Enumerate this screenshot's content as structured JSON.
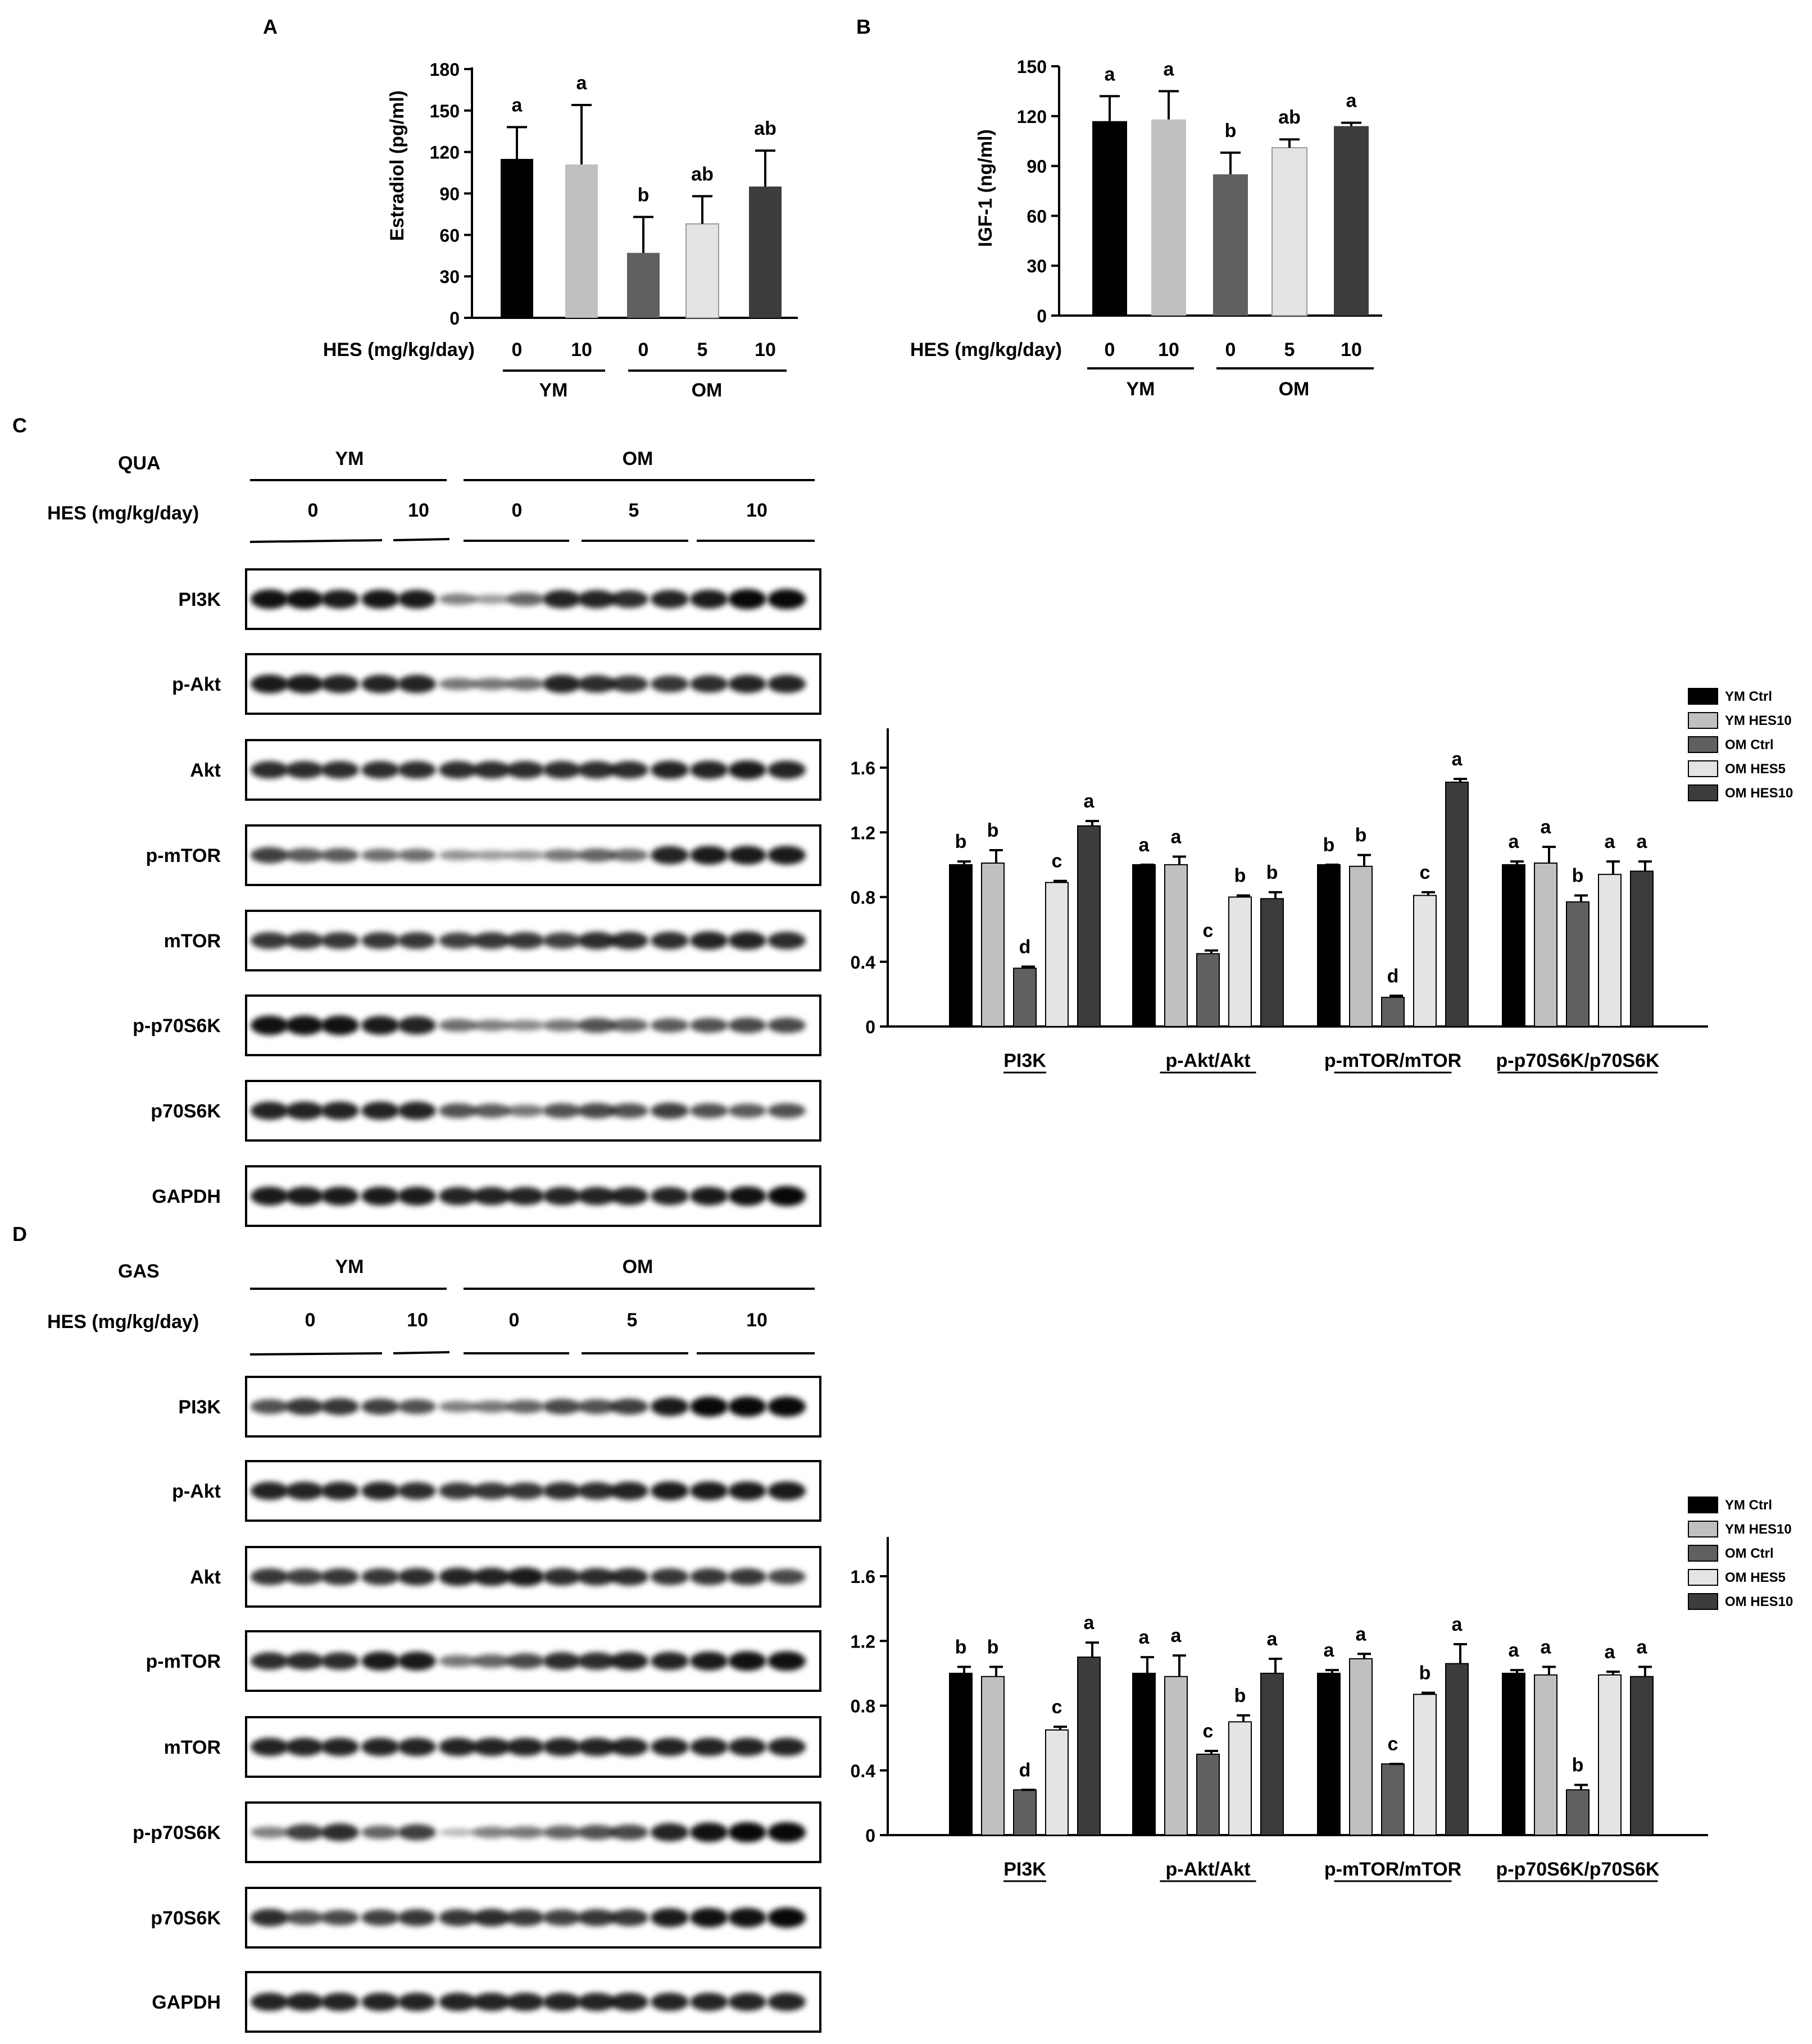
{
  "colors": {
    "ym_ctrl": "#000000",
    "ym_hes10": "#c0c0c0",
    "om_ctrl": "#606060",
    "om_hes5": "#e4e4e4",
    "om_hes10": "#3c3c3c"
  },
  "panelA": {
    "label": "A",
    "xaxis_label": "HES (mg/kg/day)",
    "doses": [
      "0",
      "10",
      "0",
      "5",
      "10"
    ],
    "groups": [
      "YM",
      "OM"
    ],
    "chart_data": {
      "type": "bar",
      "ylabel": "Estradiol (pg/ml)",
      "ylim": [
        0,
        180
      ],
      "yticks": [
        "0",
        "30",
        "60",
        "90",
        "120",
        "150",
        "180"
      ],
      "categories": [
        "YM 0",
        "YM 10",
        "OM 0",
        "OM 5",
        "OM 10"
      ],
      "values": [
        115,
        111,
        47,
        68,
        95
      ],
      "errors": [
        23,
        43,
        26,
        20,
        26
      ],
      "letters": [
        "a",
        "a",
        "b",
        "ab",
        "ab"
      ]
    }
  },
  "panelB": {
    "label": "B",
    "xaxis_label": "HES (mg/kg/day)",
    "doses": [
      "0",
      "10",
      "0",
      "5",
      "10"
    ],
    "groups": [
      "YM",
      "OM"
    ],
    "chart_data": {
      "type": "bar",
      "ylabel": "IGF-1 (ng/ml)",
      "ylim": [
        0,
        150
      ],
      "yticks": [
        "0",
        "30",
        "60",
        "90",
        "120",
        "150"
      ],
      "categories": [
        "YM 0",
        "YM 10",
        "OM 0",
        "OM 5",
        "OM 10"
      ],
      "values": [
        117,
        118,
        85,
        101,
        114
      ],
      "errors": [
        15,
        17,
        13,
        5,
        2
      ],
      "letters": [
        "a",
        "a",
        "b",
        "ab",
        "a"
      ]
    }
  },
  "panelC": {
    "label": "C",
    "tissue": "QUA",
    "hes_label": "HES (mg/kg/day)",
    "groups": [
      "YM",
      "OM"
    ],
    "doses": [
      "0",
      "10",
      "0",
      "5",
      "10"
    ],
    "blots": [
      "PI3K",
      "p-Akt",
      "Akt",
      "p-mTOR",
      "mTOR",
      "p-p70S6K",
      "p70S6K",
      "GAPDH"
    ],
    "legend": [
      "YM Ctrl",
      "YM HES10",
      "OM Ctrl",
      "OM HES5",
      "OM HES10"
    ],
    "chart_data": {
      "type": "bar",
      "categories": [
        "PI3K",
        "p-Akt/Akt",
        "p-mTOR/mTOR",
        "p-p70S6K/p70S6K"
      ],
      "ylim": [
        0,
        1.6
      ],
      "yticks": [
        "0",
        "0.4",
        "0.8",
        "1.2",
        "1.6"
      ],
      "series": [
        {
          "name": "YM Ctrl",
          "values": [
            1.0,
            1.0,
            1.0,
            1.0
          ],
          "errors": [
            0.02,
            0.0,
            0.0,
            0.02
          ],
          "letters": [
            "b",
            "a",
            "b",
            "a"
          ]
        },
        {
          "name": "YM HES10",
          "values": [
            1.01,
            1.0,
            0.99,
            1.01
          ],
          "errors": [
            0.08,
            0.05,
            0.07,
            0.1
          ],
          "letters": [
            "b",
            "a",
            "b",
            "a"
          ]
        },
        {
          "name": "OM Ctrl",
          "values": [
            0.36,
            0.45,
            0.18,
            0.77
          ],
          "errors": [
            0.01,
            0.02,
            0.01,
            0.04
          ],
          "letters": [
            "d",
            "c",
            "d",
            "b"
          ]
        },
        {
          "name": "OM HES5",
          "values": [
            0.89,
            0.8,
            0.81,
            0.94
          ],
          "errors": [
            0.01,
            0.01,
            0.02,
            0.08
          ],
          "letters": [
            "c",
            "b",
            "c",
            "a"
          ]
        },
        {
          "name": "OM HES10",
          "values": [
            1.24,
            0.79,
            1.51,
            0.96
          ],
          "errors": [
            0.03,
            0.04,
            0.02,
            0.06
          ],
          "letters": [
            "a",
            "b",
            "a",
            "a"
          ]
        }
      ]
    }
  },
  "panelD": {
    "label": "D",
    "tissue": "GAS",
    "hes_label": "HES (mg/kg/day)",
    "groups": [
      "YM",
      "OM"
    ],
    "doses": [
      "0",
      "10",
      "0",
      "5",
      "10"
    ],
    "blots": [
      "PI3K",
      "p-Akt",
      "Akt",
      "p-mTOR",
      "mTOR",
      "p-p70S6K",
      "p70S6K",
      "GAPDH"
    ],
    "legend": [
      "YM Ctrl",
      "YM HES10",
      "OM Ctrl",
      "OM HES5",
      "OM HES10"
    ],
    "chart_data": {
      "type": "bar",
      "categories": [
        "PI3K",
        "p-Akt/Akt",
        "p-mTOR/mTOR",
        "p-p70S6K/p70S6K"
      ],
      "ylim": [
        0,
        1.6
      ],
      "yticks": [
        "0",
        "0.4",
        "0.8",
        "1.2",
        "1.6"
      ],
      "series": [
        {
          "name": "YM Ctrl",
          "values": [
            1.0,
            1.0,
            1.0,
            1.0
          ],
          "errors": [
            0.04,
            0.1,
            0.02,
            0.02
          ],
          "letters": [
            "b",
            "a",
            "a",
            "a"
          ]
        },
        {
          "name": "YM HES10",
          "values": [
            0.98,
            0.98,
            1.09,
            0.99
          ],
          "errors": [
            0.06,
            0.13,
            0.03,
            0.05
          ],
          "letters": [
            "b",
            "a",
            "a",
            "a"
          ]
        },
        {
          "name": "OM Ctrl",
          "values": [
            0.28,
            0.5,
            0.44,
            0.28
          ],
          "errors": [
            0.0,
            0.02,
            0.0,
            0.03
          ],
          "letters": [
            "d",
            "c",
            "c",
            "b"
          ]
        },
        {
          "name": "OM HES5",
          "values": [
            0.65,
            0.7,
            0.87,
            0.99
          ],
          "errors": [
            0.02,
            0.04,
            0.01,
            0.02
          ],
          "letters": [
            "c",
            "b",
            "b",
            "a"
          ]
        },
        {
          "name": "OM HES10",
          "values": [
            1.1,
            1.0,
            1.06,
            0.98
          ],
          "errors": [
            0.09,
            0.09,
            0.12,
            0.06
          ],
          "letters": [
            "a",
            "a",
            "a",
            "a"
          ]
        }
      ]
    }
  }
}
